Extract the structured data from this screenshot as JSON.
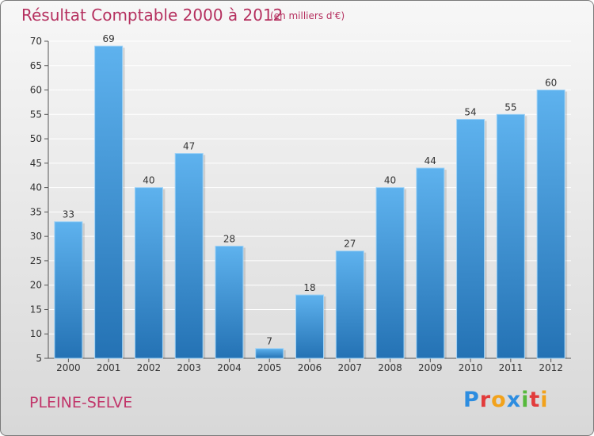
{
  "header": {
    "title": "Résultat Comptable 2000 à 2012",
    "subtitle": "(en milliers d'€)"
  },
  "footer": {
    "commune": "PLEINE-SELVE",
    "logo": [
      "P",
      "r",
      "o",
      "x",
      "i",
      "t",
      "i"
    ],
    "logo_colors": [
      "#2d8de0",
      "#e23b3b",
      "#f2a21b",
      "#2d8de0",
      "#56b93c",
      "#e23b3b",
      "#f2a21b"
    ]
  },
  "colors": {
    "bar_light": "#5aaeea",
    "bar_dark": "#2472b4",
    "grid": "#ffffff",
    "title": "#b5305f"
  },
  "chart_data": {
    "type": "bar",
    "categories": [
      "2000",
      "2001",
      "2002",
      "2003",
      "2004",
      "2005",
      "2006",
      "2007",
      "2008",
      "2009",
      "2010",
      "2011",
      "2012"
    ],
    "values": [
      33,
      69,
      40,
      47,
      28,
      7,
      18,
      27,
      40,
      44,
      54,
      55,
      60
    ],
    "ylim": [
      5,
      70
    ],
    "yticks": [
      5,
      10,
      15,
      20,
      25,
      30,
      35,
      40,
      45,
      50,
      55,
      60,
      65,
      70
    ],
    "grid": true,
    "data_labels": true
  }
}
